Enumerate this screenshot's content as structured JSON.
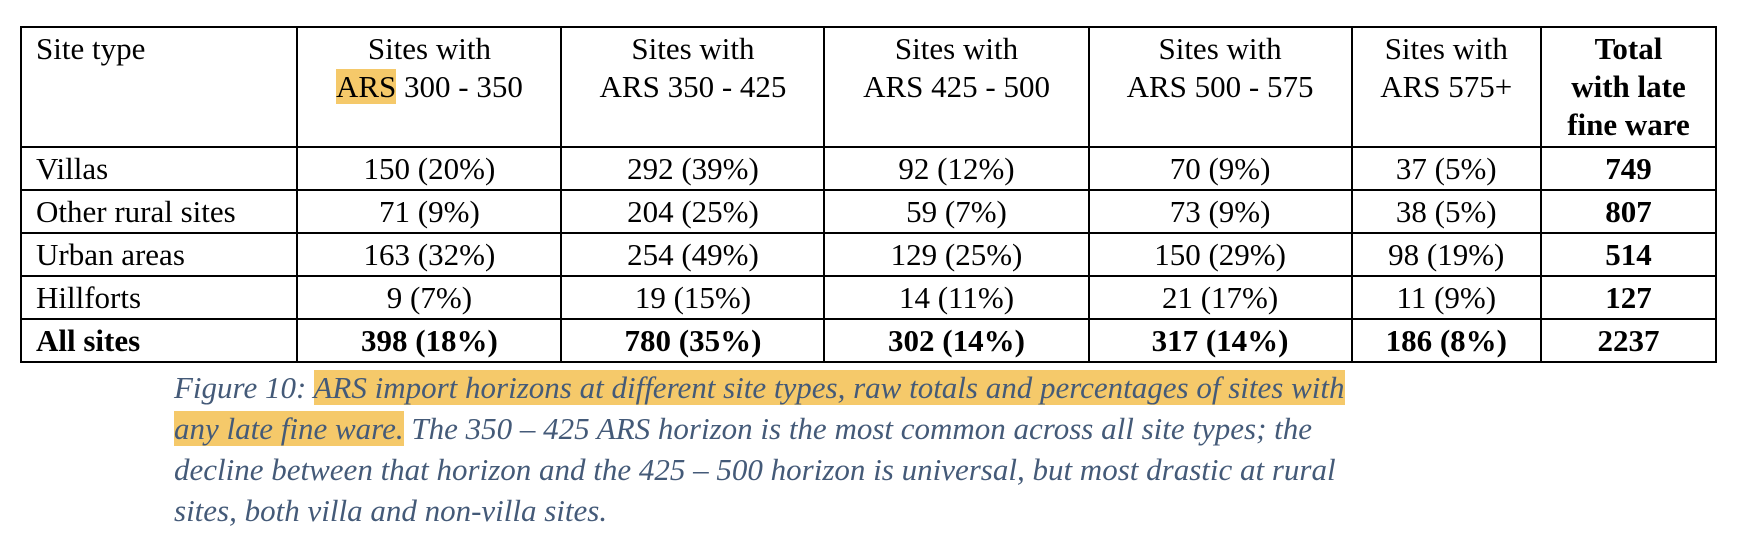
{
  "table": {
    "headers": [
      {
        "line1": "Site type",
        "line2": "",
        "line3": ""
      },
      {
        "line1": "Sites with",
        "line2_hl": "ARS",
        "line2": " 300 - 350",
        "line3": ""
      },
      {
        "line1": "Sites with",
        "line2": "ARS 350 - 425",
        "line3": ""
      },
      {
        "line1": "Sites with",
        "line2": "ARS 425 - 500",
        "line3": ""
      },
      {
        "line1": "Sites with",
        "line2": "ARS 500 - 575",
        "line3": ""
      },
      {
        "line1": "Sites with",
        "line2": "ARS 575+",
        "line3": ""
      },
      {
        "line1": "Total",
        "line2": "with late",
        "line3": "fine ware"
      }
    ],
    "rows": [
      {
        "label": "Villas",
        "cells": [
          "150 (20%)",
          "292 (39%)",
          "92 (12%)",
          "70 (9%)",
          "37 (5%)"
        ],
        "total": "749"
      },
      {
        "label": "Other rural sites",
        "cells": [
          "71 (9%)",
          "204 (25%)",
          "59 (7%)",
          "73 (9%)",
          "38 (5%)"
        ],
        "total": "807"
      },
      {
        "label": "Urban areas",
        "cells": [
          "163 (32%)",
          "254 (49%)",
          "129 (25%)",
          "150 (29%)",
          "98 (19%)"
        ],
        "total": "514"
      },
      {
        "label": "Hillforts",
        "cells": [
          "9 (7%)",
          "19 (15%)",
          "14 (11%)",
          "21 (17%)",
          "11 (9%)"
        ],
        "total": "127"
      },
      {
        "label": "All sites",
        "cells": [
          "398 (18%)",
          "780 (35%)",
          "302 (14%)",
          "317 (14%)",
          "186 (8%)"
        ],
        "total": "2237"
      }
    ]
  },
  "caption": {
    "prefix": "Figure 10: ",
    "highlight_1": "ARS import horizons at different site types, raw totals and percentages of sites with",
    "highlight_2": "any late fine ware.",
    "rest_line2": " The 350 – 425 ARS horizon is the most common across all site types; the",
    "line3": "decline between that horizon and the 425 – 500 horizon is universal, but most drastic at rural",
    "line4": "sites, both villa and non-villa sites."
  },
  "colors": {
    "highlight": "#f5c96a",
    "caption_text": "#445a78"
  }
}
